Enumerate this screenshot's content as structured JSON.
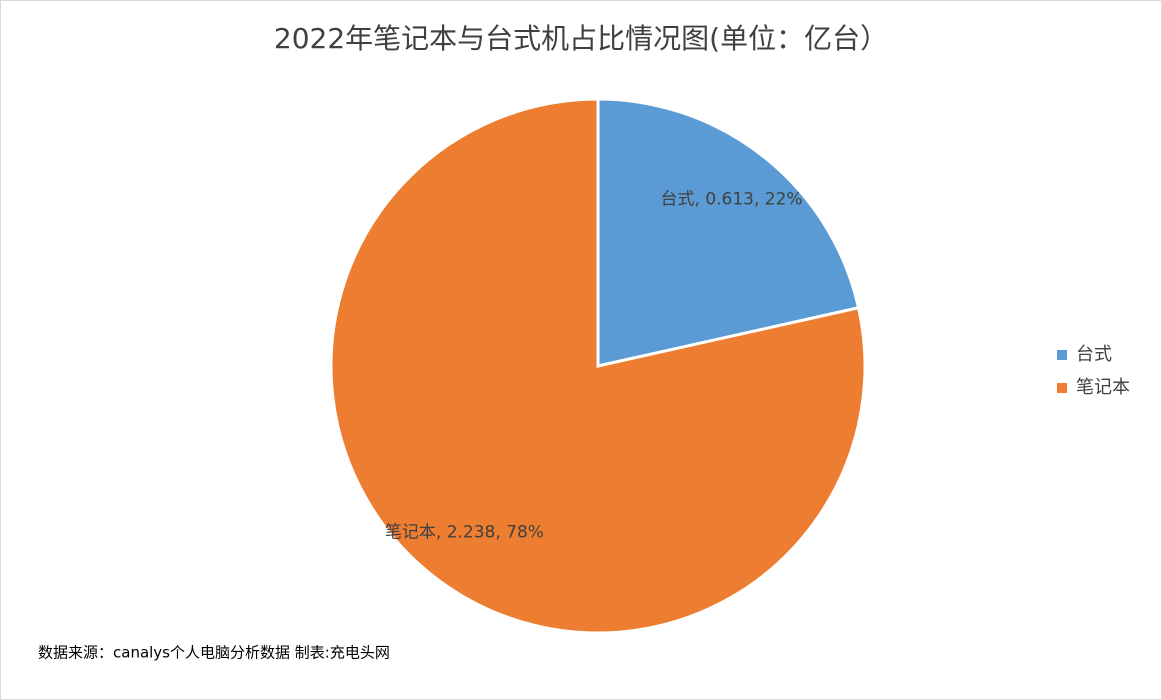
{
  "chart_data": {
    "type": "pie",
    "title": "2022年笔记本与台式机占比情况图(单位：亿台）",
    "categories": [
      "台式",
      "笔记本"
    ],
    "values": [
      0.613,
      2.238
    ],
    "value_labels": [
      "台式, 0.613, 22%",
      "笔记本, 2.238, 78%"
    ],
    "colors": [
      "#5b9bd5",
      "#ed7d31"
    ],
    "legend": "right",
    "source": "数据来源：canalys个人电脑分析数据  制表:充电头网"
  }
}
